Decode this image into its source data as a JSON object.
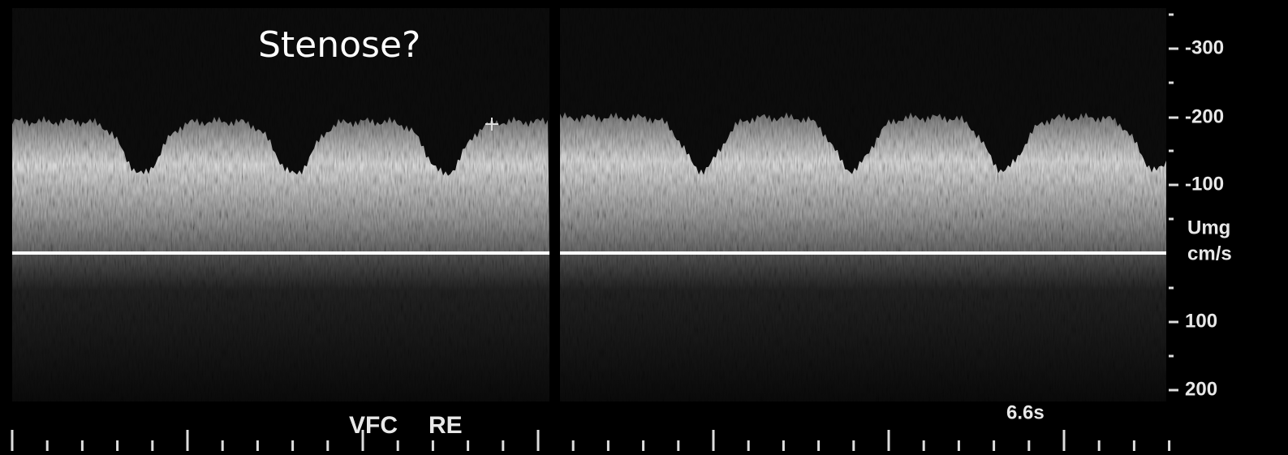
{
  "title": "Stenose?",
  "scale": {
    "labels": [
      "-300",
      "-200",
      "-100",
      "100",
      "200"
    ],
    "unit": [
      "Umg",
      "cm/s"
    ]
  },
  "footer": {
    "labels": [
      "VFC",
      "RE"
    ],
    "time": "6.6s"
  }
}
